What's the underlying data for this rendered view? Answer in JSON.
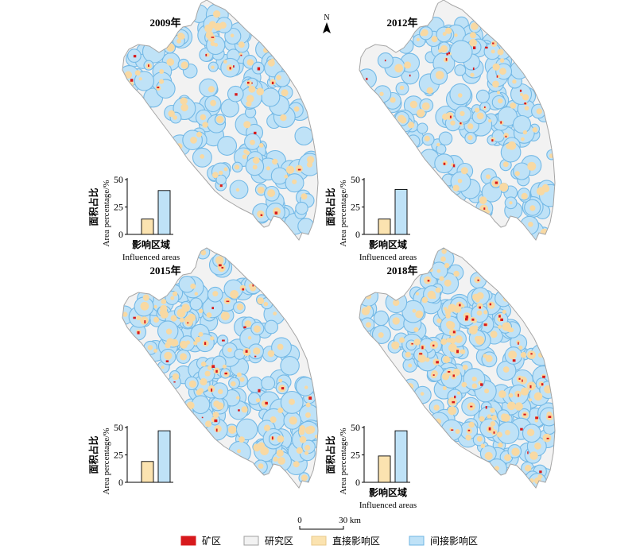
{
  "north_arrow": {
    "label": "N"
  },
  "panels": [
    {
      "year": "2009年",
      "chart_data": {
        "type": "bar",
        "categories": [
          "直接影响区",
          "间接影响区"
        ],
        "values": [
          14,
          40
        ],
        "ylim": [
          0,
          50
        ],
        "yticks": [
          "0",
          "25",
          "50"
        ],
        "ylabel_cn": "面积占比",
        "ylabel_en": "Area percentage/%",
        "xlabel_cn": "影响区域",
        "xlabel_en": "Influenced areas",
        "colors": [
          "#fbe3b0",
          "#bfe2f7"
        ]
      },
      "density": {
        "direct": 0.25,
        "mine": 0.07,
        "buffers": 150
      }
    },
    {
      "year": "2012年",
      "chart_data": {
        "type": "bar",
        "categories": [
          "直接影响区",
          "间接影响区"
        ],
        "values": [
          14,
          41
        ],
        "ylim": [
          0,
          50
        ],
        "yticks": [
          "0",
          "25",
          "50"
        ],
        "ylabel_cn": "面积占比",
        "ylabel_en": "Area percentage/%",
        "xlabel_cn": "影响区域",
        "xlabel_en": "Influenced areas",
        "colors": [
          "#fbe3b0",
          "#bfe2f7"
        ]
      },
      "density": {
        "direct": 0.27,
        "mine": 0.07,
        "buffers": 160
      }
    },
    {
      "year": "2015年",
      "chart_data": {
        "type": "bar",
        "categories": [
          "直接影响区",
          "间接影响区"
        ],
        "values": [
          19,
          47
        ],
        "ylim": [
          0,
          50
        ],
        "yticks": [
          "0",
          "25",
          "50"
        ],
        "ylabel_cn": "面积占比",
        "ylabel_en": "Area percentage/%",
        "xlabel_cn": "",
        "xlabel_en": "",
        "colors": [
          "#fbe3b0",
          "#bfe2f7"
        ]
      },
      "density": {
        "direct": 0.36,
        "mine": 0.09,
        "buffers": 185
      }
    },
    {
      "year": "2018年",
      "chart_data": {
        "type": "bar",
        "categories": [
          "直接影响区",
          "间接影响区"
        ],
        "values": [
          24,
          47
        ],
        "ylim": [
          0,
          50
        ],
        "yticks": [
          "0",
          "25",
          "50"
        ],
        "ylabel_cn": "面积占比",
        "ylabel_en": "Area percentage/%",
        "xlabel_cn": "影响区域",
        "xlabel_en": "Influenced areas",
        "colors": [
          "#fbe3b0",
          "#bfe2f7"
        ]
      },
      "density": {
        "direct": 0.45,
        "mine": 0.11,
        "buffers": 200
      }
    }
  ],
  "scale_bar": {
    "start": "0",
    "end": "30 km"
  },
  "legend": [
    {
      "label": "矿区",
      "color": "#d7191c",
      "stroke": "#d7191c"
    },
    {
      "label": "研究区",
      "color": "#f2f2f2",
      "stroke": "#a0a0a0"
    },
    {
      "label": "直接影响区",
      "color": "#fbe3b0",
      "stroke": "#e8c98a"
    },
    {
      "label": "间接影响区",
      "color": "#bfe2f7",
      "stroke": "#6fb6e3"
    }
  ],
  "colors": {
    "study_area": "#f2f2f2",
    "outline": "#a5a5a5",
    "indirect": "#bfe2f7",
    "indirect_edge": "#74b9e6",
    "direct": "#f8d9a3",
    "mine": "#d7191c"
  }
}
